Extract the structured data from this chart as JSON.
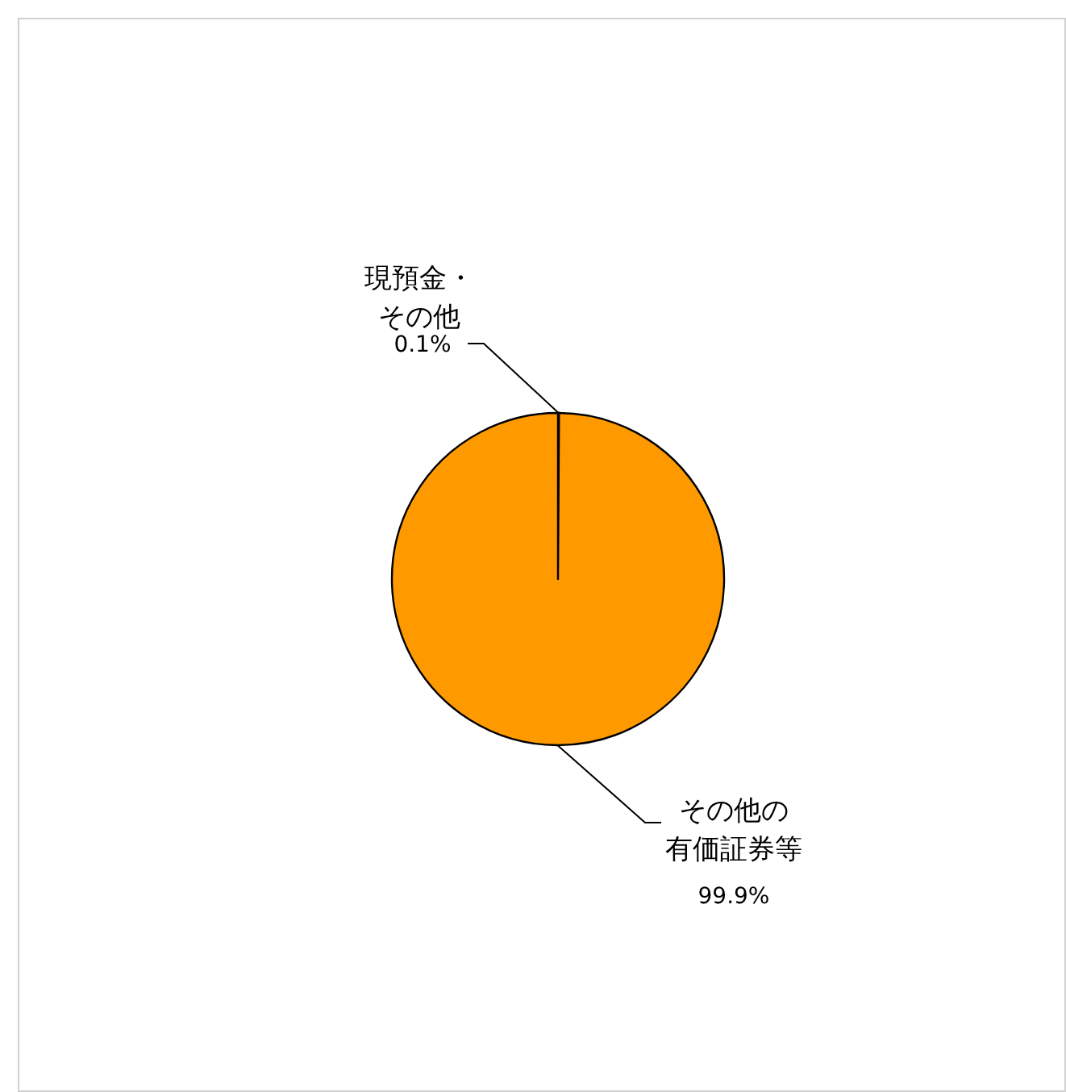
{
  "chart_data": {
    "type": "pie",
    "categories": [
      "現預金・その他",
      "その他の有価証券等"
    ],
    "values": [
      0.1,
      99.9
    ],
    "colors": [
      "#ff9900",
      "#ff9900"
    ],
    "value_labels": [
      "0.1%",
      "99.9%"
    ]
  }
}
